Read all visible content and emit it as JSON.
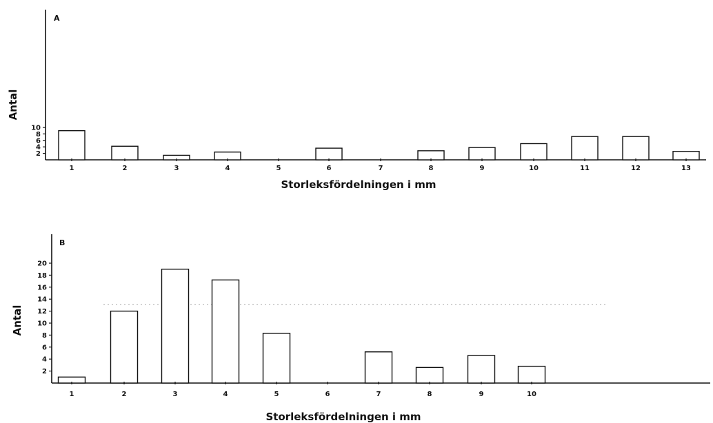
{
  "chart_data": [
    {
      "type": "bar",
      "panel_label": "A",
      "xlabel": "Storleksfördelningen i mm",
      "ylabel": "Antal",
      "categories": [
        "1",
        "2",
        "3",
        "4",
        "5",
        "6",
        "7",
        "8",
        "9",
        "10",
        "11",
        "12",
        "13"
      ],
      "values": [
        9,
        4.2,
        1.4,
        2.4,
        0,
        3.6,
        0,
        2.8,
        3.8,
        5,
        7.2,
        7.2,
        2.6
      ],
      "yticks": [
        "2",
        "4",
        "6",
        "8",
        "10"
      ],
      "ylim": [
        0,
        22
      ],
      "grid": false
    },
    {
      "type": "bar",
      "panel_label": "B",
      "xlabel": "Storleksfördelningen i mm",
      "ylabel": "Antal",
      "categories": [
        "1",
        "2",
        "3",
        "4",
        "5",
        "6",
        "7",
        "8",
        "9",
        "10"
      ],
      "values": [
        1,
        12,
        19,
        17.2,
        8.3,
        0,
        5.2,
        2.6,
        4.6,
        2.8
      ],
      "yticks": [
        "2",
        "4",
        "6",
        "8",
        "10",
        "12",
        "14",
        "16",
        "18",
        "20"
      ],
      "ylim": [
        0,
        22
      ],
      "grid": false
    }
  ]
}
